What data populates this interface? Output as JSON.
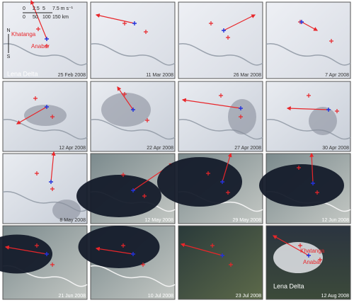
{
  "panels": [
    {
      "date": "25 Feb 2008"
    },
    {
      "date": "11 Mar 2008"
    },
    {
      "date": "26 Mar 2008"
    },
    {
      "date": "7 Apr 2008"
    },
    {
      "date": "12 Apr 2008"
    },
    {
      "date": "22 Apr 2008"
    },
    {
      "date": "27 Apr 2008"
    },
    {
      "date": "30 Apr 2008"
    },
    {
      "date": "8 May 2008"
    },
    {
      "date": "12 May 2008"
    },
    {
      "date": "29 May 2008"
    },
    {
      "date": "12 Jun 2008"
    },
    {
      "date": "21 Jun 2008"
    },
    {
      "date": "10 Jul 2008"
    },
    {
      "date": "23 Jul 2008"
    },
    {
      "date": "12 Aug 2008"
    }
  ],
  "legend": {
    "wind_ticks": [
      "0",
      "2.5",
      "5",
      "7.5 m s⁻¹"
    ],
    "distance_ticks": [
      "0",
      "50",
      "100",
      "150 km"
    ],
    "north": "N",
    "south": "S"
  },
  "places": {
    "khatanga": "Khatanga",
    "anabar": "Anabar",
    "lena_delta": "Lena Delta"
  }
}
